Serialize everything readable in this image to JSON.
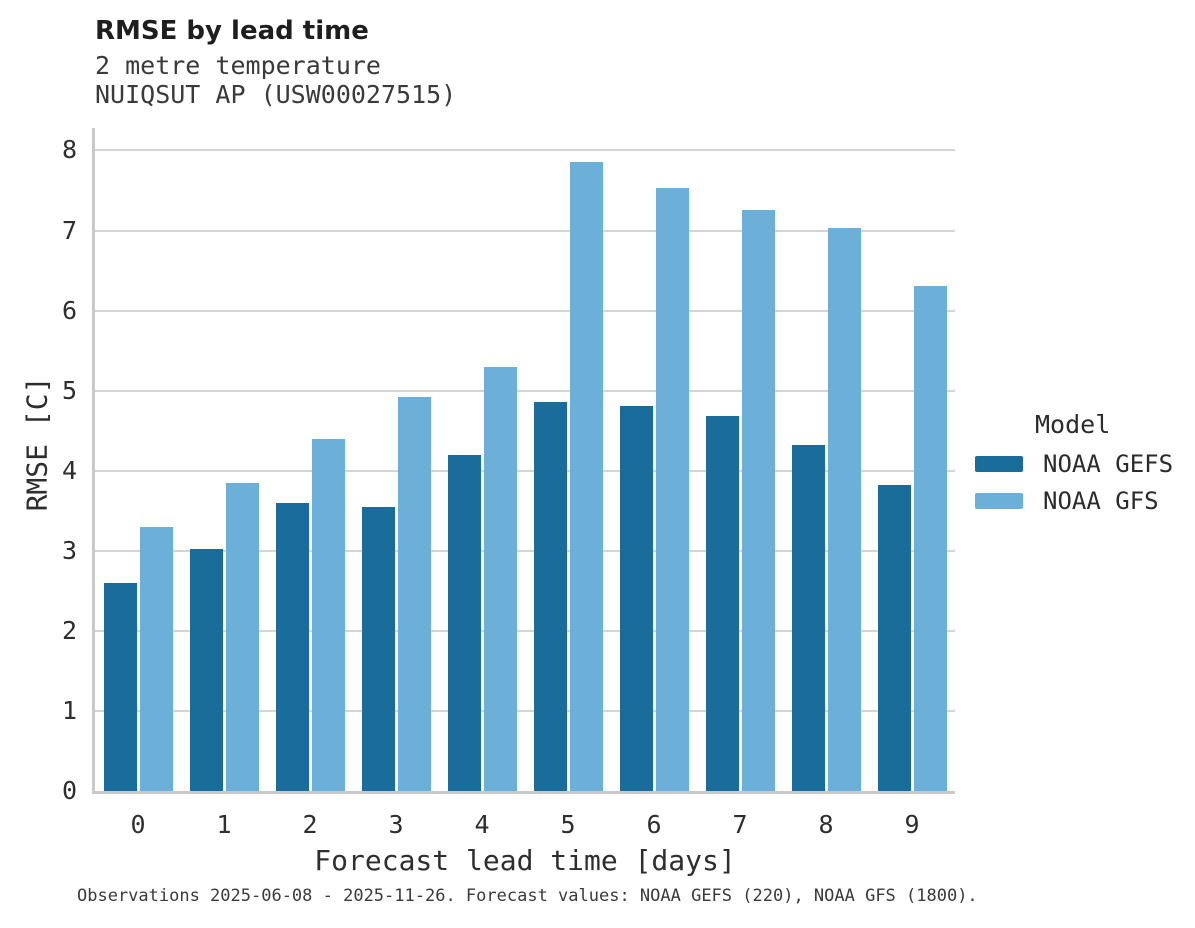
{
  "chart_data": {
    "type": "bar",
    "title": "RMSE by lead time",
    "subtitle": [
      "2 metre temperature",
      "NUIQSUT AP (USW00027515)"
    ],
    "xlabel": "Forecast lead time [days]",
    "ylabel": "RMSE [C]",
    "categories": [
      "0",
      "1",
      "2",
      "3",
      "4",
      "5",
      "6",
      "7",
      "8",
      "9"
    ],
    "series": [
      {
        "name": "NOAA GEFS",
        "color": "#1A6D9B",
        "values": [
          2.6,
          3.02,
          3.6,
          3.55,
          4.2,
          4.86,
          4.81,
          4.68,
          4.32,
          3.82
        ]
      },
      {
        "name": "NOAA GFS",
        "color": "#6CB0D9",
        "values": [
          3.3,
          3.85,
          4.4,
          4.92,
          5.3,
          7.86,
          7.53,
          7.25,
          7.03,
          6.31
        ]
      }
    ],
    "ylim": [
      0,
      8.28
    ],
    "yticks": [
      0,
      1,
      2,
      3,
      4,
      5,
      6,
      7,
      8
    ],
    "grid": true,
    "legend_title": "Model",
    "legend_position": "right",
    "caption": "Observations 2025-06-08 - 2025-11-26. Forecast values: NOAA GEFS (220), NOAA GFS (1800)."
  },
  "style": {
    "gridline_color": "#D4D4D4",
    "spine_color": "#C9C9C9"
  }
}
